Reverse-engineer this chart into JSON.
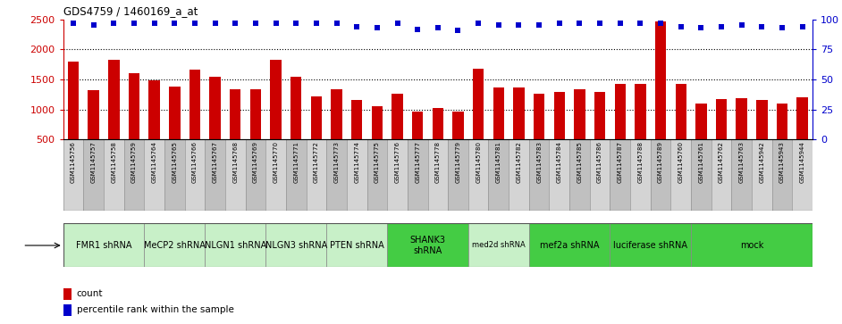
{
  "title": "GDS4759 / 1460169_a_at",
  "samples": [
    "GSM1145756",
    "GSM1145757",
    "GSM1145758",
    "GSM1145759",
    "GSM1145764",
    "GSM1145765",
    "GSM1145766",
    "GSM1145767",
    "GSM1145768",
    "GSM1145769",
    "GSM1145770",
    "GSM1145771",
    "GSM1145772",
    "GSM1145773",
    "GSM1145774",
    "GSM1145775",
    "GSM1145776",
    "GSM1145777",
    "GSM1145778",
    "GSM1145779",
    "GSM1145780",
    "GSM1145781",
    "GSM1145782",
    "GSM1145783",
    "GSM1145784",
    "GSM1145785",
    "GSM1145786",
    "GSM1145787",
    "GSM1145788",
    "GSM1145789",
    "GSM1145760",
    "GSM1145761",
    "GSM1145762",
    "GSM1145763",
    "GSM1145942",
    "GSM1145943",
    "GSM1145944"
  ],
  "counts": [
    1800,
    1320,
    1820,
    1600,
    1490,
    1380,
    1660,
    1540,
    1340,
    1340,
    1820,
    1540,
    1220,
    1330,
    1150,
    1050,
    1260,
    960,
    1020,
    960,
    1680,
    1370,
    1370,
    1260,
    1290,
    1340,
    1290,
    1430,
    1430,
    2460,
    1430,
    1100,
    1170,
    1180,
    1160,
    1100,
    1200
  ],
  "percentiles": [
    97,
    95,
    97,
    97,
    97,
    97,
    97,
    97,
    97,
    97,
    97,
    97,
    97,
    97,
    94,
    93,
    97,
    92,
    93,
    91,
    97,
    95,
    95,
    95,
    97,
    97,
    97,
    97,
    97,
    97,
    94,
    93,
    94,
    95,
    94,
    93,
    94
  ],
  "protocols": [
    {
      "label": "FMR1 shRNA",
      "start": 0,
      "end": 4,
      "color": "#c8f0c8",
      "fontsize": 7
    },
    {
      "label": "MeCP2 shRNA",
      "start": 4,
      "end": 7,
      "color": "#c8f0c8",
      "fontsize": 7
    },
    {
      "label": "NLGN1 shRNA",
      "start": 7,
      "end": 10,
      "color": "#c8f0c8",
      "fontsize": 7
    },
    {
      "label": "NLGN3 shRNA",
      "start": 10,
      "end": 13,
      "color": "#c8f0c8",
      "fontsize": 7
    },
    {
      "label": "PTEN shRNA",
      "start": 13,
      "end": 16,
      "color": "#c8f0c8",
      "fontsize": 7
    },
    {
      "label": "SHANK3\nshRNA",
      "start": 16,
      "end": 20,
      "color": "#44cc44",
      "fontsize": 7
    },
    {
      "label": "med2d shRNA",
      "start": 20,
      "end": 23,
      "color": "#c8f0c8",
      "fontsize": 6
    },
    {
      "label": "mef2a shRNA",
      "start": 23,
      "end": 27,
      "color": "#44cc44",
      "fontsize": 7
    },
    {
      "label": "luciferase shRNA",
      "start": 27,
      "end": 31,
      "color": "#44cc44",
      "fontsize": 7
    },
    {
      "label": "mock",
      "start": 31,
      "end": 37,
      "color": "#44cc44",
      "fontsize": 7
    }
  ],
  "bar_color": "#cc0000",
  "dot_color": "#0000cc",
  "ylim_left": [
    500,
    2500
  ],
  "ylim_right": [
    0,
    100
  ],
  "yticks_left": [
    500,
    1000,
    1500,
    2000,
    2500
  ],
  "yticks_right": [
    0,
    25,
    50,
    75,
    100
  ],
  "label_bg_even": "#d4d4d4",
  "label_bg_odd": "#c0c0c0",
  "plot_bg": "#ffffff"
}
